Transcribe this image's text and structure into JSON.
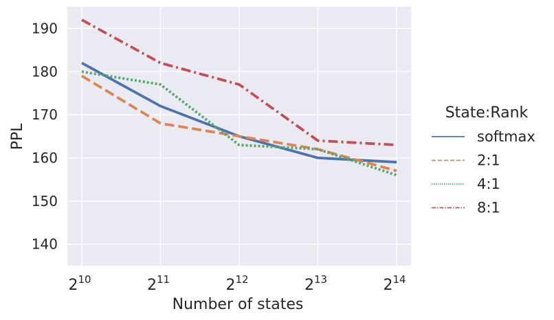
{
  "chart_data": {
    "type": "line",
    "xlabel": "Number of states",
    "ylabel": "PPL",
    "x": [
      10,
      11,
      12,
      13,
      14
    ],
    "x_tick_base": "2",
    "x_tick_exponents": [
      "10",
      "11",
      "12",
      "13",
      "14"
    ],
    "x_scale": "log2",
    "yticks": [
      "140",
      "150",
      "160",
      "170",
      "180",
      "190"
    ],
    "ylim": [
      135,
      195
    ],
    "grid": true,
    "legend_title": "State:Rank",
    "legend_placement": "right",
    "series": [
      {
        "name": "softmax",
        "values": [
          182,
          172,
          165,
          160,
          159
        ],
        "color": "#4c72b0",
        "dash": "solid"
      },
      {
        "name": "2:1",
        "values": [
          179,
          168,
          165,
          162,
          157
        ],
        "color": "#dd8452",
        "dash": "dashed"
      },
      {
        "name": "4:1",
        "values": [
          180,
          177,
          163,
          162,
          156
        ],
        "color": "#55a868",
        "dash": "dotted"
      },
      {
        "name": "8:1",
        "values": [
          192,
          182,
          177,
          164,
          163
        ],
        "color": "#c44e52",
        "dash": "dashdot"
      }
    ]
  }
}
